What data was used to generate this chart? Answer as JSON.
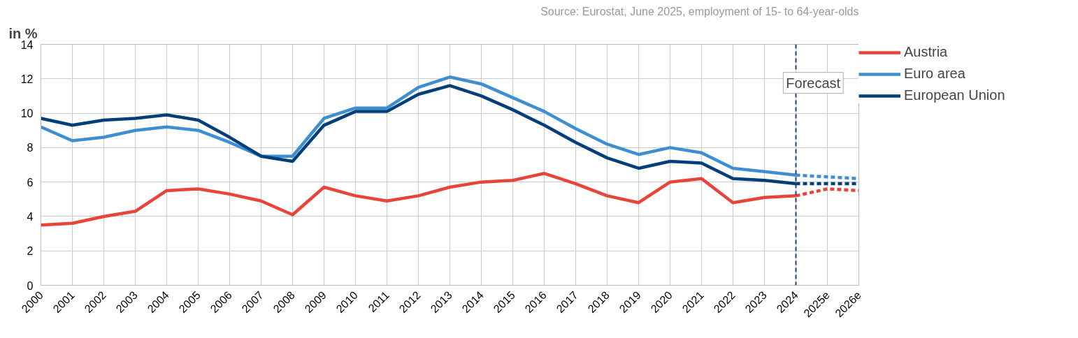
{
  "chart_data": {
    "type": "line",
    "ylabel": "in %",
    "categories": [
      "2000",
      "2001",
      "2002",
      "2003",
      "2004",
      "2005",
      "2006",
      "2007",
      "2008",
      "2009",
      "2010",
      "2011",
      "2012",
      "2013",
      "2014",
      "2015",
      "2016",
      "2017",
      "2018",
      "2019",
      "2020",
      "2021",
      "2022",
      "2023",
      "2024",
      "2025e",
      "2026e"
    ],
    "ylim": [
      0,
      14
    ],
    "yticks": [
      0,
      2,
      4,
      6,
      8,
      10,
      12,
      14
    ],
    "grid": true,
    "legend": "right",
    "series": [
      {
        "name": "Austria",
        "color": "#e8443a",
        "line_style": "solid",
        "values": [
          3.5,
          3.6,
          4.0,
          4.3,
          5.5,
          5.6,
          5.3,
          4.9,
          4.1,
          5.7,
          5.2,
          4.9,
          5.2,
          5.7,
          6.0,
          6.1,
          6.5,
          5.9,
          5.2,
          4.8,
          6.0,
          6.2,
          4.8,
          5.1,
          5.2,
          null,
          null
        ]
      },
      {
        "name": "Euro area",
        "color": "#3d8fd1",
        "line_style": "solid",
        "values": [
          9.2,
          8.4,
          8.6,
          9.0,
          9.2,
          9.0,
          8.3,
          7.5,
          7.5,
          9.7,
          10.3,
          10.3,
          11.5,
          12.1,
          11.7,
          10.9,
          10.1,
          9.1,
          8.2,
          7.6,
          8.0,
          7.7,
          6.8,
          6.6,
          6.4,
          null,
          null
        ]
      },
      {
        "name": "European Union",
        "color": "#003f7a",
        "line_style": "solid",
        "values": [
          9.7,
          9.3,
          9.6,
          9.7,
          9.9,
          9.6,
          8.6,
          7.5,
          7.2,
          9.3,
          10.1,
          10.1,
          11.1,
          11.6,
          11.0,
          10.2,
          9.3,
          8.3,
          7.4,
          6.8,
          7.2,
          7.1,
          6.2,
          6.1,
          5.9,
          null,
          null
        ]
      },
      {
        "color": "#e8443a",
        "line_style": "dashed",
        "values": [
          null,
          null,
          null,
          null,
          null,
          null,
          null,
          null,
          null,
          null,
          null,
          null,
          null,
          null,
          null,
          null,
          null,
          null,
          null,
          null,
          null,
          null,
          null,
          null,
          5.2,
          5.6,
          5.5
        ]
      },
      {
        "color": "#3d8fd1",
        "line_style": "dashed",
        "values": [
          null,
          null,
          null,
          null,
          null,
          null,
          null,
          null,
          null,
          null,
          null,
          null,
          null,
          null,
          null,
          null,
          null,
          null,
          null,
          null,
          null,
          null,
          null,
          null,
          6.4,
          6.3,
          6.2
        ]
      },
      {
        "color": "#003f7a",
        "line_style": "dashed",
        "values": [
          null,
          null,
          null,
          null,
          null,
          null,
          null,
          null,
          null,
          null,
          null,
          null,
          null,
          null,
          null,
          null,
          null,
          null,
          null,
          null,
          null,
          null,
          null,
          null,
          5.9,
          5.9,
          5.9
        ]
      }
    ],
    "ref_lines": [
      {
        "axis": "x",
        "value": "2024",
        "label": "Forecast",
        "color": "#1f3f7a",
        "line_style": "dashed"
      }
    ],
    "annotations": [
      "Source: Eurostat, June 2025, employment of 15- to 64-year-olds"
    ]
  }
}
